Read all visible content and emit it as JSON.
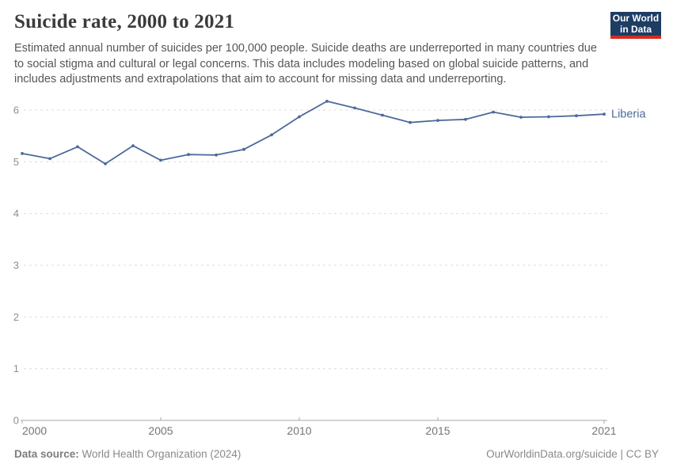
{
  "header": {
    "title": "Suicide rate, 2000 to 2021",
    "subtitle": "Estimated annual number of suicides per 100,000 people. Suicide deaths are underreported in many countries due to social stigma and cultural or legal concerns. This data includes modeling based on global suicide patterns, and includes adjustments and extrapolations that aim to account for missing data and underreporting.",
    "logo": {
      "line1": "Our World",
      "line2": "in Data",
      "bg": "#1d3d63",
      "accent": "#d42b21"
    }
  },
  "chart_data": {
    "type": "line",
    "title": "Suicide rate, 2000 to 2021",
    "xlabel": "",
    "ylabel": "",
    "x": [
      2000,
      2001,
      2002,
      2003,
      2004,
      2005,
      2006,
      2007,
      2008,
      2009,
      2010,
      2011,
      2012,
      2013,
      2014,
      2015,
      2016,
      2017,
      2018,
      2019,
      2020,
      2021
    ],
    "series": [
      {
        "name": "Liberia",
        "color": "#4c6a9c",
        "values": [
          5.16,
          5.06,
          5.29,
          4.96,
          5.31,
          5.03,
          5.14,
          5.13,
          5.24,
          5.52,
          5.87,
          6.17,
          6.04,
          5.9,
          5.76,
          5.8,
          5.82,
          5.96,
          5.86,
          5.87,
          5.89,
          5.92
        ]
      }
    ],
    "xticks": [
      2000,
      2005,
      2010,
      2015,
      2021
    ],
    "yticks": [
      0,
      1,
      2,
      3,
      4,
      5,
      6
    ],
    "ylim": [
      0,
      6.4
    ],
    "xlim": [
      2000,
      2021
    ],
    "grid": "horizontal-dashed",
    "legend": "end-of-line-label"
  },
  "footer": {
    "source_label": "Data source:",
    "source_value": " World Health Organization (2024)",
    "credit": "OurWorldinData.org/suicide | CC BY"
  },
  "colors": {
    "line": "#4c6a9c",
    "grid": "#dcdcdc",
    "axis": "#a8a8a8",
    "x_tick_label": "#757575",
    "y_tick_label": "#8f8f8f",
    "title": "#3b3b3b",
    "subtitle": "#565656",
    "footer": "#898989",
    "logo_bg": "#1d3d63",
    "logo_accent": "#d42b21"
  }
}
